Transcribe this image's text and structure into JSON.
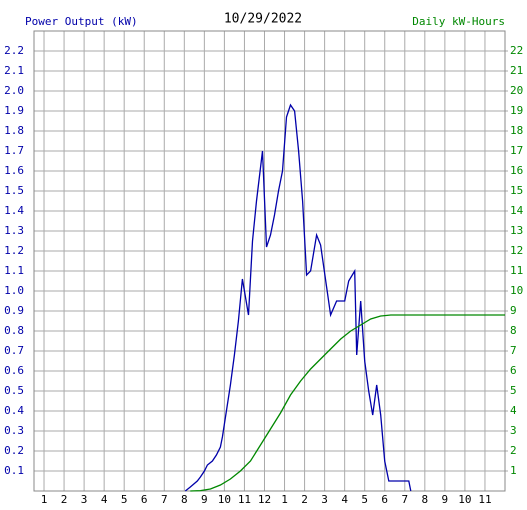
{
  "chart_data": {
    "type": "line",
    "title": "10/29/2022",
    "xlim": [
      0.5,
      24
    ],
    "xticks": [
      1,
      2,
      3,
      4,
      5,
      6,
      7,
      8,
      9,
      10,
      11,
      12,
      {
        "value": 13,
        "label": "1"
      },
      {
        "value": 14,
        "label": "2"
      },
      {
        "value": 15,
        "label": "3"
      },
      {
        "value": 16,
        "label": "4"
      },
      {
        "value": 17,
        "label": "5"
      },
      {
        "value": 18,
        "label": "6"
      },
      {
        "value": 19,
        "label": "7"
      },
      {
        "value": 20,
        "label": "8"
      },
      {
        "value": 21,
        "label": "9"
      },
      {
        "value": 22,
        "label": "10"
      },
      {
        "value": 23,
        "label": "11"
      }
    ],
    "ylim": [
      0,
      2.3
    ],
    "yticks": [
      0.1,
      0.2,
      0.3,
      0.4,
      0.5,
      0.6,
      0.7,
      0.8,
      0.9,
      {
        "value": 1,
        "label": "1.0"
      },
      1.1,
      1.2,
      1.3,
      1.4,
      1.5,
      1.6,
      1.7,
      1.8,
      1.9,
      {
        "value": 2,
        "label": "2.0"
      },
      2.1,
      2.2
    ],
    "y2lim": [
      0,
      23
    ],
    "y2ticks": [
      1,
      2,
      3,
      4,
      5,
      6,
      7,
      8,
      9,
      10,
      11,
      12,
      13,
      14,
      15,
      16,
      17,
      18,
      19,
      20,
      21,
      22
    ],
    "grid": true,
    "series": [
      {
        "name": "Power Output (kW)",
        "color": "#0000aa",
        "x": [
          8.05,
          8.3,
          8.65,
          8.8,
          9.0,
          9.15,
          9.4,
          9.6,
          9.8,
          9.9,
          10.1,
          10.3,
          10.5,
          10.7,
          10.9,
          11.2,
          11.4,
          11.6,
          11.9,
          12.1,
          12.3,
          12.5,
          12.7,
          12.9,
          13.1,
          13.3,
          13.5,
          13.7,
          13.9,
          14.1,
          14.3,
          14.6,
          14.8,
          15.1,
          15.3,
          15.6,
          16.0,
          16.2,
          16.5,
          16.6,
          16.8,
          17.0,
          17.2,
          17.4,
          17.6,
          17.8,
          18.0,
          18.2,
          18.8,
          19.2,
          19.3
        ],
        "values": [
          0,
          0.02,
          0.05,
          0.07,
          0.1,
          0.13,
          0.15,
          0.18,
          0.22,
          0.27,
          0.4,
          0.53,
          0.68,
          0.85,
          1.06,
          0.88,
          1.25,
          1.45,
          1.7,
          1.22,
          1.28,
          1.38,
          1.5,
          1.6,
          1.87,
          1.93,
          1.9,
          1.7,
          1.45,
          1.08,
          1.1,
          1.28,
          1.23,
          1.02,
          0.88,
          0.95,
          0.95,
          1.05,
          1.1,
          0.68,
          0.95,
          0.65,
          0.5,
          0.38,
          0.53,
          0.38,
          0.15,
          0.05,
          0.05,
          0.05,
          0
        ]
      },
      {
        "name": "Daily kW-Hours",
        "color": "#008800",
        "axis": "y2",
        "x": [
          8.3,
          8.8,
          9.3,
          9.8,
          10.3,
          10.8,
          11.3,
          11.8,
          12.3,
          12.8,
          13.3,
          13.8,
          14.3,
          14.8,
          15.3,
          15.8,
          16.3,
          16.8,
          17.3,
          17.8,
          18.3,
          24
        ],
        "values": [
          0,
          0.02,
          0.1,
          0.3,
          0.6,
          1.0,
          1.5,
          2.3,
          3.1,
          3.9,
          4.8,
          5.5,
          6.1,
          6.6,
          7.1,
          7.6,
          8.0,
          8.3,
          8.6,
          8.75,
          8.8,
          8.8
        ]
      }
    ]
  }
}
